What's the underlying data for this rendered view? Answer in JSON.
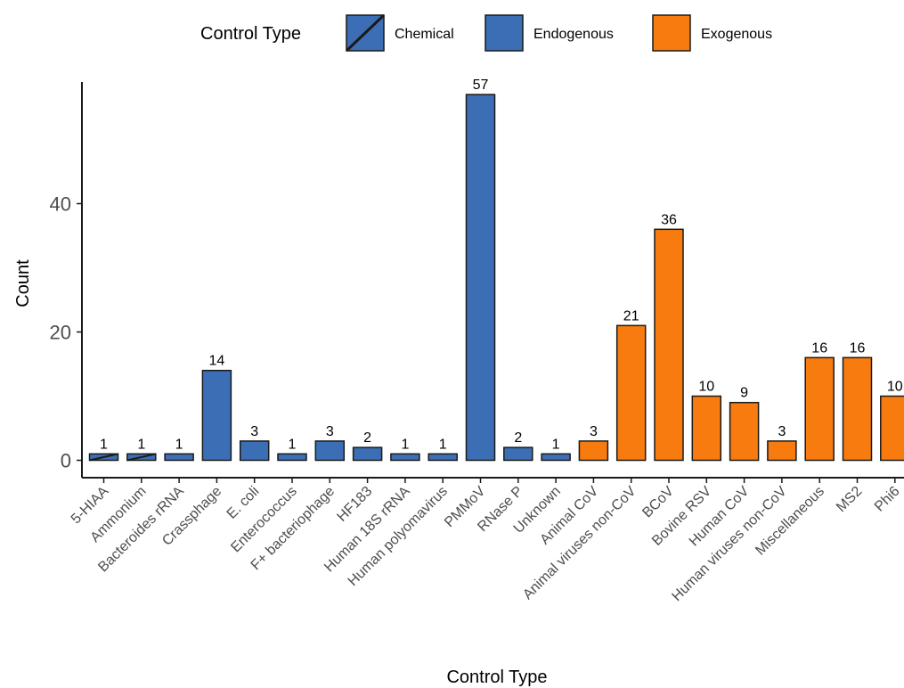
{
  "chart_data": {
    "type": "bar",
    "xlabel": "Control Type",
    "ylabel": "Count",
    "ylim": [
      0,
      60
    ],
    "yticks": [
      0,
      20,
      40
    ],
    "legend": {
      "title": "Control Type",
      "position": "top",
      "entries": [
        {
          "label": "Chemical",
          "color": "#3b6eb4",
          "hatched": true
        },
        {
          "label": "Endogenous",
          "color": "#3b6eb4",
          "hatched": false
        },
        {
          "label": "Exogenous",
          "color": "#f77b0f",
          "hatched": false
        }
      ]
    },
    "categories": [
      "5-HIAA",
      "Ammonium",
      "Bacteroides rRNA",
      "Crassphage",
      "E. coli",
      "Enterococcus",
      "F+ bacteriophage",
      "HF183",
      "Human 18S rRNA",
      "Human polyomavirus",
      "PMMoV",
      "RNase P",
      "Unknown",
      "Animal CoV",
      "Animal viruses non-CoV",
      "BCoV",
      "Bovine RSV",
      "Human CoV",
      "Human viruses non-CoV",
      "Miscellaneous",
      "MS2",
      "Phi6"
    ],
    "values": [
      1,
      1,
      1,
      14,
      3,
      1,
      3,
      2,
      1,
      1,
      57,
      2,
      1,
      3,
      21,
      36,
      10,
      9,
      3,
      16,
      16,
      10
    ],
    "groups": [
      "Chemical",
      "Chemical",
      "Endogenous",
      "Endogenous",
      "Endogenous",
      "Endogenous",
      "Endogenous",
      "Endogenous",
      "Endogenous",
      "Endogenous",
      "Endogenous",
      "Endogenous",
      "Endogenous",
      "Exogenous",
      "Exogenous",
      "Exogenous",
      "Exogenous",
      "Exogenous",
      "Exogenous",
      "Exogenous",
      "Exogenous",
      "Exogenous"
    ],
    "colors": {
      "Chemical": "#3b6eb4",
      "Endogenous": "#3b6eb4",
      "Exogenous": "#f77b0f"
    }
  }
}
